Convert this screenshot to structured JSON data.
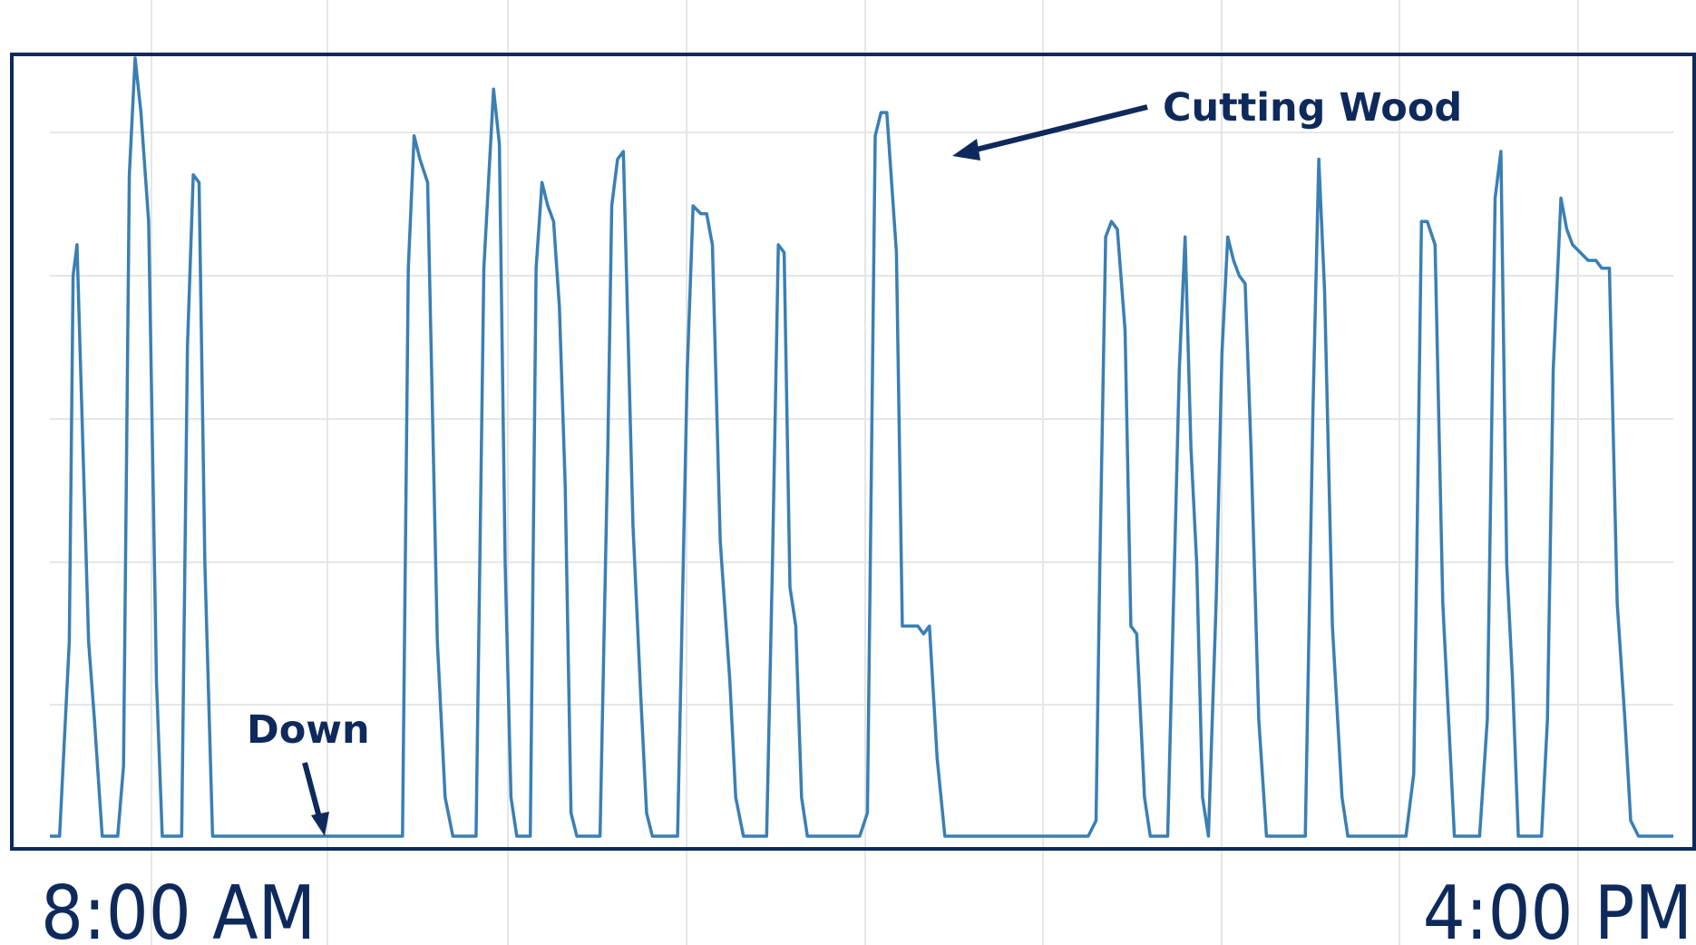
{
  "chart_data": {
    "type": "line",
    "x_labels": [
      "8:00 AM",
      "4:00 PM"
    ],
    "grid": true,
    "line_color": "#3a7fb4",
    "frame_color": "#0e2a5c",
    "annotations": [
      {
        "text": "Cutting Wood",
        "target": "peak near 12:00"
      },
      {
        "text": "Down",
        "target": "idle baseline near 9:00"
      }
    ],
    "series": [
      {
        "points": [
          [
            0,
            0
          ],
          [
            0.5,
            0
          ],
          [
            1,
            0.25
          ],
          [
            1.2,
            0.72
          ],
          [
            1.4,
            0.76
          ],
          [
            2,
            0.25
          ],
          [
            2.3,
            0.15
          ],
          [
            2.7,
            0
          ],
          [
            3.5,
            0
          ],
          [
            3.8,
            0.09
          ],
          [
            4.1,
            0.85
          ],
          [
            4.4,
            1.0
          ],
          [
            4.7,
            0.93
          ],
          [
            5.1,
            0.79
          ],
          [
            5.5,
            0.2
          ],
          [
            5.8,
            0
          ],
          [
            6.8,
            0
          ],
          [
            7.1,
            0.63
          ],
          [
            7.4,
            0.85
          ],
          [
            7.7,
            0.84
          ],
          [
            8.0,
            0.35
          ],
          [
            8.4,
            0
          ],
          [
            12,
            0
          ],
          [
            13.5,
            0
          ],
          [
            18.2,
            0
          ],
          [
            18.5,
            0.73
          ],
          [
            18.8,
            0.9
          ],
          [
            19.1,
            0.87
          ],
          [
            19.5,
            0.84
          ],
          [
            20.0,
            0.25
          ],
          [
            20.4,
            0.05
          ],
          [
            20.8,
            0
          ],
          [
            22.0,
            0
          ],
          [
            22.4,
            0.73
          ],
          [
            22.9,
            0.96
          ],
          [
            23.2,
            0.89
          ],
          [
            23.5,
            0.35
          ],
          [
            23.8,
            0.05
          ],
          [
            24.1,
            0
          ],
          [
            24.8,
            0
          ],
          [
            25.1,
            0.73
          ],
          [
            25.4,
            0.84
          ],
          [
            25.7,
            0.81
          ],
          [
            26.0,
            0.79
          ],
          [
            26.3,
            0.68
          ],
          [
            26.6,
            0.45
          ],
          [
            26.9,
            0.03
          ],
          [
            27.2,
            0
          ],
          [
            28.4,
            0
          ],
          [
            28.8,
            0.5
          ],
          [
            29.0,
            0.81
          ],
          [
            29.3,
            0.87
          ],
          [
            29.6,
            0.88
          ],
          [
            30.1,
            0.4
          ],
          [
            30.5,
            0.18
          ],
          [
            30.8,
            0.03
          ],
          [
            31.1,
            0
          ],
          [
            32.4,
            0
          ],
          [
            32.9,
            0.6
          ],
          [
            33.2,
            0.81
          ],
          [
            33.6,
            0.8
          ],
          [
            33.9,
            0.8
          ],
          [
            34.2,
            0.76
          ],
          [
            34.6,
            0.38
          ],
          [
            35.1,
            0.2
          ],
          [
            35.4,
            0.05
          ],
          [
            35.8,
            0
          ],
          [
            37.0,
            0
          ],
          [
            37.3,
            0.35
          ],
          [
            37.6,
            0.76
          ],
          [
            37.9,
            0.75
          ],
          [
            38.2,
            0.32
          ],
          [
            38.5,
            0.27
          ],
          [
            38.8,
            0.05
          ],
          [
            39.1,
            0
          ],
          [
            41.8,
            0
          ],
          [
            42.2,
            0.03
          ],
          [
            42.6,
            0.9
          ],
          [
            42.9,
            0.93
          ],
          [
            43.2,
            0.93
          ],
          [
            43.7,
            0.75
          ],
          [
            44.0,
            0.27
          ],
          [
            44.4,
            0.27
          ],
          [
            44.8,
            0.27
          ],
          [
            45.1,
            0.26
          ],
          [
            45.4,
            0.27
          ],
          [
            45.8,
            0.1
          ],
          [
            46.2,
            0
          ],
          [
            53.6,
            0
          ],
          [
            54.0,
            0.02
          ],
          [
            54.2,
            0.35
          ],
          [
            54.5,
            0.77
          ],
          [
            54.8,
            0.79
          ],
          [
            55.1,
            0.78
          ],
          [
            55.5,
            0.65
          ],
          [
            55.8,
            0.27
          ],
          [
            56.1,
            0.26
          ],
          [
            56.5,
            0.05
          ],
          [
            56.8,
            0
          ],
          [
            57.7,
            0
          ],
          [
            58.0,
            0.3
          ],
          [
            58.3,
            0.6
          ],
          [
            58.6,
            0.77
          ],
          [
            58.9,
            0.5
          ],
          [
            59.2,
            0.35
          ],
          [
            59.5,
            0.05
          ],
          [
            59.8,
            0
          ],
          [
            60.2,
            0.3
          ],
          [
            60.5,
            0.62
          ],
          [
            60.8,
            0.77
          ],
          [
            61.1,
            0.74
          ],
          [
            61.4,
            0.72
          ],
          [
            61.7,
            0.71
          ],
          [
            62.0,
            0.5
          ],
          [
            62.4,
            0.15
          ],
          [
            62.8,
            0
          ],
          [
            64.8,
            0
          ],
          [
            65.2,
            0.55
          ],
          [
            65.5,
            0.87
          ],
          [
            65.8,
            0.7
          ],
          [
            66.2,
            0.27
          ],
          [
            66.7,
            0.05
          ],
          [
            67.0,
            0
          ],
          [
            70.0,
            0
          ],
          [
            70.4,
            0.08
          ],
          [
            70.8,
            0.79
          ],
          [
            71.1,
            0.79
          ],
          [
            71.5,
            0.76
          ],
          [
            71.9,
            0.3
          ],
          [
            72.2,
            0.15
          ],
          [
            72.5,
            0
          ],
          [
            73.8,
            0
          ],
          [
            74.2,
            0.15
          ],
          [
            74.6,
            0.82
          ],
          [
            74.9,
            0.88
          ],
          [
            75.2,
            0.35
          ],
          [
            75.5,
            0.2
          ],
          [
            75.8,
            0
          ],
          [
            77.0,
            0
          ],
          [
            77.3,
            0.15
          ],
          [
            77.6,
            0.6
          ],
          [
            78.0,
            0.82
          ],
          [
            78.3,
            0.78
          ],
          [
            78.6,
            0.76
          ],
          [
            79.0,
            0.75
          ],
          [
            79.4,
            0.74
          ],
          [
            79.8,
            0.74
          ],
          [
            80.1,
            0.73
          ],
          [
            80.5,
            0.73
          ],
          [
            80.9,
            0.3
          ],
          [
            81.3,
            0.15
          ],
          [
            81.6,
            0.02
          ],
          [
            82.0,
            0
          ],
          [
            83.6,
            0
          ],
          [
            83.8,
            0
          ]
        ]
      }
    ]
  }
}
